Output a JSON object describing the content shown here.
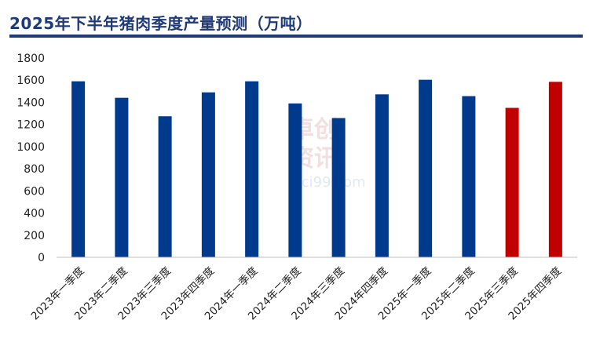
{
  "chart_data": {
    "type": "bar",
    "title": "2025年下半年猪肉季度产量预测（万吨）",
    "categories": [
      "2023年一季度",
      "2023年二季度",
      "2023年三季度",
      "2023年四季度",
      "2024年一季度",
      "2024年二季度",
      "2024年三季度",
      "2024年四季度",
      "2025年一季度",
      "2025年二季度",
      "2025年三季度",
      "2025年四季度"
    ],
    "series": [
      {
        "values": [
          1590,
          1441,
          1274,
          1490,
          1590,
          1390,
          1258,
          1472,
          1604,
          1456,
          1350,
          1585
        ]
      }
    ],
    "highlighted": [
      false,
      false,
      false,
      false,
      false,
      false,
      false,
      false,
      false,
      false,
      true,
      true
    ],
    "ylim": [
      0,
      1800
    ],
    "yticks": [
      0,
      200,
      400,
      600,
      800,
      1000,
      1200,
      1400,
      1600,
      1800
    ],
    "grid": false,
    "colors": {
      "actual": "#003a8c",
      "forecast": "#c00000",
      "title": "#1f3a78"
    },
    "watermark": {
      "line1": "卓创",
      "line2": "资讯",
      "url": "sci99.com"
    }
  }
}
